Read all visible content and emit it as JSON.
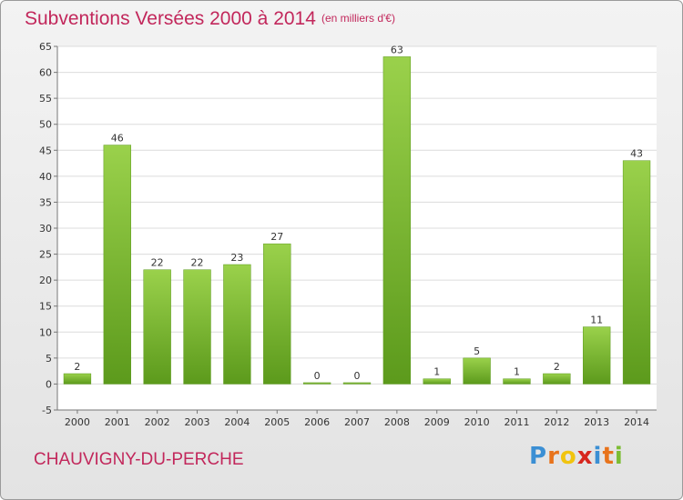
{
  "chart_data": {
    "type": "bar",
    "title": "Subventions Versées 2000 à 2014",
    "unit_note": "(en milliers d'€)",
    "categories": [
      "2000",
      "2001",
      "2002",
      "2003",
      "2004",
      "2005",
      "2006",
      "2007",
      "2008",
      "2009",
      "2010",
      "2011",
      "2012",
      "2013",
      "2014"
    ],
    "values": [
      2,
      46,
      22,
      22,
      23,
      27,
      0,
      0,
      63,
      1,
      5,
      1,
      2,
      11,
      43
    ],
    "ylim": [
      -5,
      65
    ],
    "yticks": [
      "-5",
      "0",
      "5",
      "10",
      "15",
      "20",
      "25",
      "30",
      "35",
      "40",
      "45",
      "50",
      "55",
      "60",
      "65"
    ],
    "grid": true,
    "bar_color": "#7cbd33",
    "bar_color_light": "#9ad14b",
    "bar_color_dark": "#5c9a1c"
  },
  "footer": {
    "place": "CHAUVIGNY-DU-PERCHE",
    "logo": {
      "letters": [
        "P",
        "r",
        "o",
        "x",
        "i",
        "t",
        "i"
      ],
      "colors": [
        "#3b8fd4",
        "#e8731b",
        "#f1c40f",
        "#d7261e",
        "#3b8fd4",
        "#e8731b",
        "#7cbd33"
      ]
    }
  }
}
